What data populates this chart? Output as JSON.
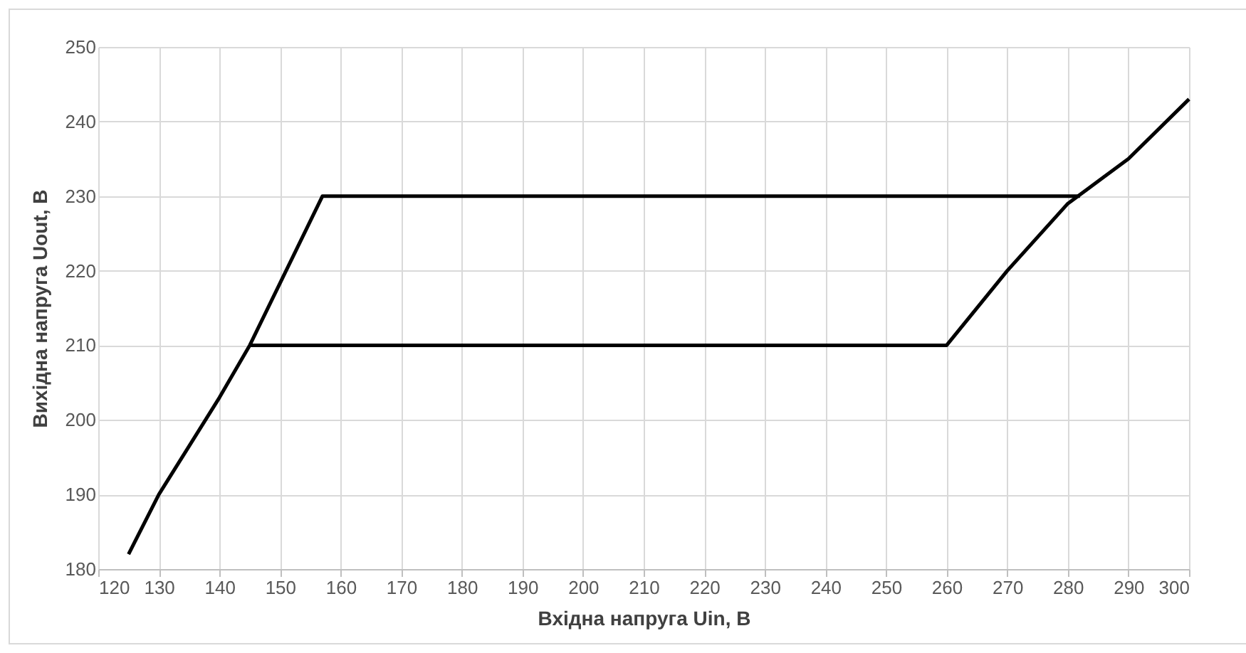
{
  "chart_data": {
    "type": "line",
    "xlabel": "Вхідна напруга Uin, В",
    "ylabel": "Вихідна напруга Uout, В",
    "series": [
      {
        "color": "#000000",
        "x": [
          125,
          130,
          140,
          145,
          157,
          282
        ],
        "values": [
          182,
          190,
          203,
          210,
          230,
          230
        ]
      },
      {
        "color": "#000000",
        "x": [
          145,
          260,
          270,
          280,
          290,
          300
        ],
        "values": [
          210,
          210,
          220,
          229,
          235,
          243
        ]
      }
    ],
    "xlim": [
      120,
      300
    ],
    "xticks": [
      120,
      130,
      140,
      150,
      160,
      170,
      180,
      190,
      200,
      210,
      220,
      230,
      240,
      250,
      260,
      270,
      280,
      290,
      300
    ],
    "ylim": [
      180,
      250
    ],
    "yticks": [
      180,
      190,
      200,
      210,
      220,
      230,
      240,
      250
    ],
    "grid": true,
    "marker": "none",
    "line_style": "solid"
  }
}
